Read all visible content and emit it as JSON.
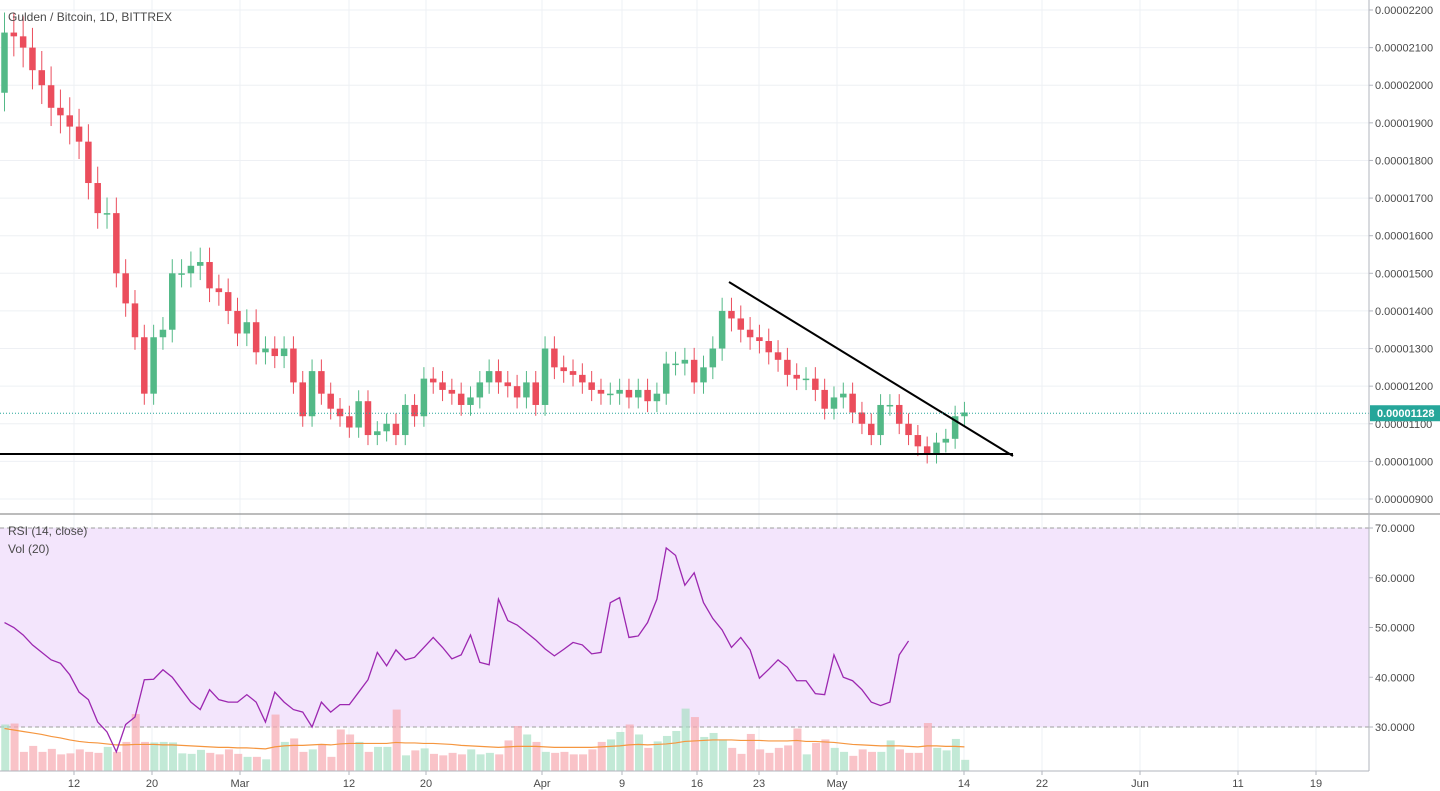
{
  "header": {
    "title": "Gulden / Bitcoin, 1D, BITTREX"
  },
  "indicators": {
    "rsi_label": "RSI (14, close)",
    "vol_label": "Vol (20)"
  },
  "last_price": {
    "label": "0.00001128",
    "value": 1.128e-05
  },
  "colors": {
    "up": "#53b987",
    "down": "#eb4d5c",
    "rsi": "#9c27b0",
    "rsi_band": "#f3e5fc",
    "vol_ma": "#f5963f",
    "price_line": "#26a69a",
    "last_price_bg": "#26a69a",
    "grid": "#eef0f4",
    "trendline": "#000000"
  },
  "chart_data": [
    {
      "type": "candlestick",
      "title": "Gulden / Bitcoin, 1D, BITTREX",
      "x_ticks": [
        "12",
        "20",
        "Mar",
        "12",
        "20",
        "Apr",
        "9",
        "16",
        "23",
        "May",
        "14",
        "22",
        "Jun",
        "11",
        "19"
      ],
      "y_ticks": [
        "0.00002200",
        "0.00002100",
        "0.00002000",
        "0.00001900",
        "0.00001800",
        "0.00001700",
        "0.00001600",
        "0.00001500",
        "0.00001400",
        "0.00001300",
        "0.00001200",
        "0.00001100",
        "0.00001000",
        "0.00000900"
      ],
      "ylim": [
        8.7e-06,
        2.23e-05
      ],
      "opens": [
        1.98e-05,
        2.14e-05,
        2.13e-05,
        2.1e-05,
        2.04e-05,
        2e-05,
        1.94e-05,
        1.92e-05,
        1.89e-05,
        1.85e-05,
        1.74e-05,
        1.66e-05,
        1.66e-05,
        1.5e-05,
        1.42e-05,
        1.33e-05,
        1.18e-05,
        1.33e-05,
        1.35e-05,
        1.5e-05,
        1.5e-05,
        1.52e-05,
        1.53e-05,
        1.46e-05,
        1.45e-05,
        1.4e-05,
        1.34e-05,
        1.37e-05,
        1.29e-05,
        1.3e-05,
        1.28e-05,
        1.3e-05,
        1.21e-05,
        1.12e-05,
        1.24e-05,
        1.18e-05,
        1.14e-05,
        1.12e-05,
        1.09e-05,
        1.16e-05,
        1.07e-05,
        1.08e-05,
        1.1e-05,
        1.07e-05,
        1.15e-05,
        1.12e-05,
        1.22e-05,
        1.21e-05,
        1.19e-05,
        1.18e-05,
        1.15e-05,
        1.17e-05,
        1.21e-05,
        1.24e-05,
        1.21e-05,
        1.2e-05,
        1.17e-05,
        1.21e-05,
        1.15e-05,
        1.3e-05,
        1.25e-05,
        1.24e-05,
        1.23e-05,
        1.21e-05,
        1.19e-05,
        1.18e-05,
        1.18e-05,
        1.19e-05,
        1.17e-05,
        1.19e-05,
        1.16e-05,
        1.18e-05,
        1.26e-05,
        1.26e-05,
        1.27e-05,
        1.21e-05,
        1.25e-05,
        1.3e-05,
        1.4e-05,
        1.38e-05,
        1.35e-05,
        1.33e-05,
        1.32e-05,
        1.29e-05,
        1.27e-05,
        1.23e-05,
        1.22e-05,
        1.22e-05,
        1.19e-05,
        1.14e-05,
        1.17e-05,
        1.18e-05,
        1.13e-05,
        1.1e-05,
        1.07e-05,
        1.15e-05,
        1.15e-05,
        1.1e-05,
        1.07e-05,
        1.04e-05,
        1.02e-05,
        1.05e-05,
        1.06e-05,
        1.12e-05
      ],
      "closes": [
        2.14e-05,
        2.13e-05,
        2.1e-05,
        2.04e-05,
        2e-05,
        1.94e-05,
        1.92e-05,
        1.89e-05,
        1.85e-05,
        1.74e-05,
        1.66e-05,
        1.66e-05,
        1.5e-05,
        1.42e-05,
        1.33e-05,
        1.18e-05,
        1.33e-05,
        1.35e-05,
        1.5e-05,
        1.5e-05,
        1.52e-05,
        1.53e-05,
        1.46e-05,
        1.45e-05,
        1.4e-05,
        1.34e-05,
        1.37e-05,
        1.29e-05,
        1.3e-05,
        1.28e-05,
        1.3e-05,
        1.21e-05,
        1.12e-05,
        1.24e-05,
        1.18e-05,
        1.14e-05,
        1.12e-05,
        1.09e-05,
        1.16e-05,
        1.07e-05,
        1.08e-05,
        1.1e-05,
        1.07e-05,
        1.15e-05,
        1.12e-05,
        1.22e-05,
        1.21e-05,
        1.19e-05,
        1.18e-05,
        1.15e-05,
        1.17e-05,
        1.21e-05,
        1.24e-05,
        1.21e-05,
        1.2e-05,
        1.17e-05,
        1.21e-05,
        1.15e-05,
        1.3e-05,
        1.25e-05,
        1.24e-05,
        1.23e-05,
        1.21e-05,
        1.19e-05,
        1.18e-05,
        1.18e-05,
        1.19e-05,
        1.17e-05,
        1.19e-05,
        1.16e-05,
        1.18e-05,
        1.26e-05,
        1.26e-05,
        1.27e-05,
        1.21e-05,
        1.25e-05,
        1.3e-05,
        1.4e-05,
        1.38e-05,
        1.35e-05,
        1.33e-05,
        1.32e-05,
        1.29e-05,
        1.27e-05,
        1.23e-05,
        1.22e-05,
        1.22e-05,
        1.19e-05,
        1.14e-05,
        1.17e-05,
        1.18e-05,
        1.13e-05,
        1.1e-05,
        1.07e-05,
        1.15e-05,
        1.15e-05,
        1.1e-05,
        1.07e-05,
        1.04e-05,
        1.02e-05,
        1.05e-05,
        1.06e-05,
        1.12e-05,
        1.13e-05
      ],
      "last_price": 1.128e-05
    },
    {
      "type": "line",
      "title": "RSI (14, close)",
      "y_ticks": [
        "70.0000",
        "60.0000",
        "50.0000",
        "40.0000",
        "30.0000"
      ],
      "ylim": [
        20,
        74
      ],
      "band": [
        30,
        70
      ],
      "rsi": [
        51,
        50,
        48.5,
        46.5,
        45,
        43.5,
        42.8,
        40.5,
        37,
        35.5,
        31,
        29,
        25,
        30.5,
        32,
        39.5,
        39.6,
        41.5,
        40,
        37.5,
        35,
        33.5,
        37.5,
        35.5,
        35,
        35,
        36.5,
        35,
        31,
        37,
        35,
        33.5,
        33,
        30,
        35,
        33,
        34.5,
        34.5,
        37,
        39.5,
        45,
        42.3,
        45.5,
        43.5,
        44,
        46,
        48,
        46,
        43.7,
        44.5,
        48.5,
        43,
        42.5,
        55.7,
        51.4,
        50.5,
        49,
        47.5,
        45.7,
        44.3,
        45.6,
        47,
        46.5,
        44.7,
        45,
        55,
        56,
        48,
        48.3,
        51,
        55.7,
        66,
        64.5,
        58.5,
        61,
        55,
        51.8,
        49.5,
        46,
        48,
        45.5,
        39.8,
        41.6,
        43.5,
        42,
        39.3,
        39.3,
        36.7,
        36.5,
        44.5,
        40,
        39.3,
        37.5,
        35,
        34.3,
        35,
        44.5,
        47.3
      ],
      "volume": [
        30.5,
        30.7,
        25,
        26.2,
        25,
        25.6,
        24.5,
        24.7,
        25.5,
        25,
        24.8,
        26,
        25,
        27,
        32.6,
        27,
        26.9,
        27,
        26.9,
        24.7,
        24.6,
        25.4,
        24.8,
        24.5,
        25.5,
        24.6,
        24,
        24,
        23.5,
        32.5,
        27,
        27.7,
        25,
        25.5,
        26.5,
        24,
        29.5,
        28.5,
        27,
        25,
        26,
        26,
        33.5,
        24.3,
        25.3,
        25.7,
        24.6,
        24.3,
        24.8,
        24.5,
        25.5,
        24.5,
        24.8,
        24.5,
        27.3,
        30.2,
        28.5,
        27,
        25,
        24.8,
        25,
        24.5,
        24.5,
        25.5,
        27,
        27.5,
        29,
        30.5,
        28.5,
        25.8,
        27.1,
        28.2,
        29.2,
        33.7,
        32,
        28,
        28.8,
        27.5,
        25.8,
        24.6,
        28.6,
        25.5,
        24.8,
        25.8,
        26.3,
        29.7,
        24.5,
        26.8,
        27.5,
        25.8,
        25,
        24.2,
        25.5,
        25,
        25,
        27.3,
        25.5,
        24.8,
        24.8,
        30.8,
        25.8,
        25.3,
        27.6,
        23.4
      ],
      "vol_ma": [
        29.7,
        29.4,
        29.1,
        28.8,
        28.5,
        28.1,
        27.8,
        27.4,
        27.1,
        26.9,
        26.8,
        26.6,
        26.4,
        26.4,
        26.5,
        26.5,
        26.5,
        26.4,
        26.4,
        26.3,
        26.2,
        26.1,
        26,
        25.9,
        25.9,
        25.8,
        25.8,
        25.7,
        25.6,
        26,
        26.2,
        26.3,
        26.3,
        26.4,
        26.5,
        26.4,
        26.6,
        26.7,
        26.7,
        26.7,
        26.7,
        26.7,
        26.9,
        26.8,
        26.8,
        26.7,
        26.7,
        26.6,
        26.5,
        26.3,
        26.2,
        26.1,
        26,
        25.9,
        26,
        26.1,
        26.1,
        26.1,
        26,
        25.9,
        25.9,
        25.9,
        25.9,
        25.9,
        26,
        26.1,
        26.2,
        26.4,
        26.5,
        26.4,
        26.5,
        26.6,
        26.8,
        27.1,
        27.2,
        27.3,
        27.4,
        27.4,
        27.4,
        27.3,
        27.3,
        27.3,
        27.2,
        27.2,
        27.2,
        27.3,
        27.1,
        27.1,
        27,
        26.9,
        26.7,
        26.5,
        26.4,
        26.3,
        26.2,
        26.2,
        26.2,
        26.1,
        26,
        26.2,
        26.2,
        26.1,
        26.1,
        26
      ]
    }
  ]
}
